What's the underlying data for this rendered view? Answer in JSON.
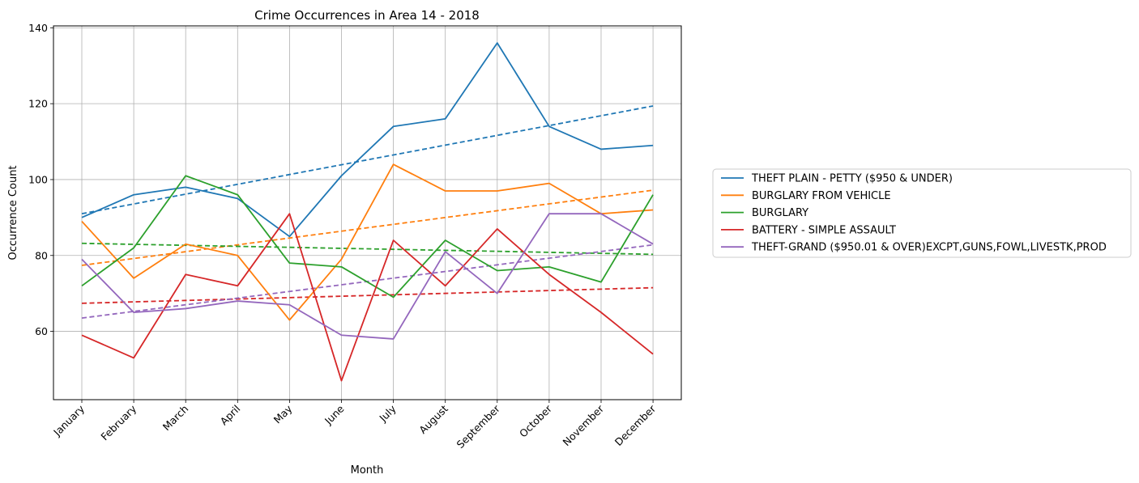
{
  "chart_data": {
    "type": "line",
    "title": "Crime Occurrences in Area 14 - 2018",
    "xlabel": "Month",
    "ylabel": "Occurrence Count",
    "categories": [
      "January",
      "February",
      "March",
      "April",
      "May",
      "June",
      "July",
      "August",
      "September",
      "October",
      "November",
      "December"
    ],
    "ylim": [
      42,
      140.5
    ],
    "yticks": [
      60,
      80,
      100,
      120,
      140
    ],
    "grid": true,
    "legend_position": "right, outside plot",
    "series": [
      {
        "name": "THEFT PLAIN - PETTY ($950 & UNDER)",
        "color": "#1f77b4",
        "values": [
          90,
          96,
          98,
          95,
          85,
          101,
          114,
          116,
          136,
          114,
          108,
          109
        ],
        "trend": [
          91.0,
          119.4
        ]
      },
      {
        "name": "BURGLARY FROM VEHICLE",
        "color": "#ff7f0e",
        "values": [
          89,
          74,
          83,
          80,
          63,
          79,
          104,
          97,
          97,
          99,
          91,
          92
        ],
        "trend": [
          77.4,
          97.2
        ]
      },
      {
        "name": "BURGLARY",
        "color": "#2ca02c",
        "values": [
          72,
          82,
          101,
          96,
          78,
          77,
          69,
          84,
          76,
          77,
          73,
          96
        ],
        "trend": [
          83.2,
          80.3
        ]
      },
      {
        "name": "BATTERY - SIMPLE ASSAULT",
        "color": "#d62728",
        "values": [
          59,
          53,
          75,
          72,
          91,
          47,
          84,
          72,
          87,
          75,
          65,
          54
        ],
        "trend": [
          67.4,
          71.5
        ]
      },
      {
        "name": "THEFT-GRAND ($950.01 & OVER)EXCPT,GUNS,FOWL,LIVESTK,PROD",
        "color": "#9467bd",
        "values": [
          79,
          65,
          66,
          68,
          67,
          59,
          58,
          81,
          70,
          91,
          91,
          83
        ],
        "trend": [
          63.5,
          82.8
        ]
      }
    ]
  }
}
